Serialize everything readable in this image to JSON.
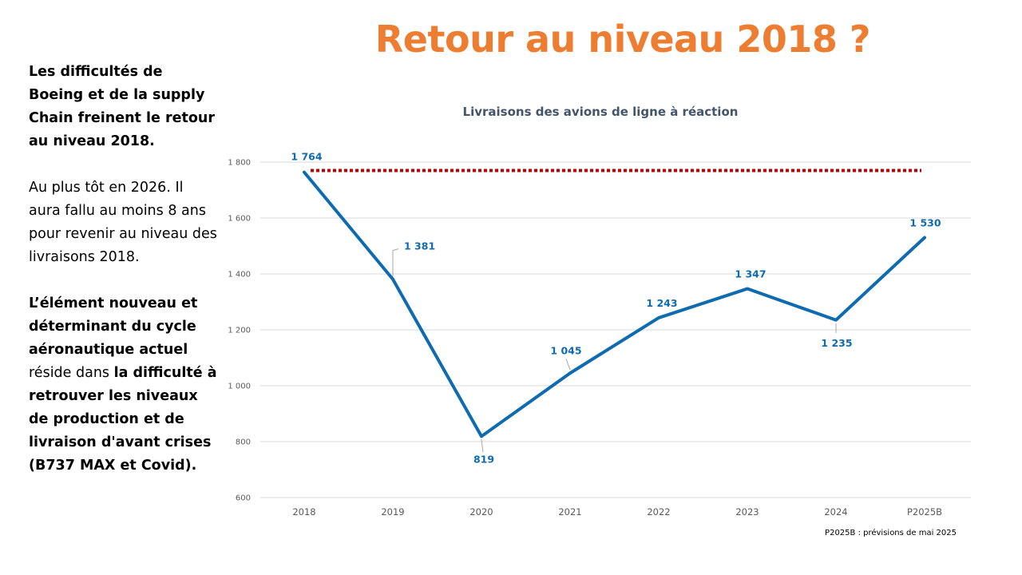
{
  "slide": {
    "title": "Retour au niveau 2018 ?"
  },
  "text": {
    "p1": "Les difficultés de Boeing et de la supply Chain freinent le retour au niveau 2018.",
    "p2": "Au plus tôt en 2026.  Il aura fallu au moins 8 ans pour revenir au niveau des livraisons 2018.",
    "p3_bold1": "L’élément nouveau et déterminant du cycle aéronautique actuel",
    "p3_regular": " réside dans ",
    "p3_bold2": "la difficulté à retrouver les niveaux de production et de livraison d'avant crises (B737 MAX et Covid)."
  },
  "chart_data": {
    "type": "line",
    "title": "Livraisons des avions de ligne à réaction",
    "categories": [
      "2018",
      "2019",
      "2020",
      "2021",
      "2022",
      "2023",
      "2024",
      "P2025B"
    ],
    "series": [
      {
        "values": [
          1764,
          1381,
          819,
          1045,
          1243,
          1347,
          1235,
          1530
        ],
        "labels": [
          "1 764",
          "1 381",
          "819",
          "1 045",
          "1 243",
          "1 347",
          "1 235",
          "1 530"
        ],
        "color": "#0E6BAF"
      }
    ],
    "reference_line": {
      "value": 1770,
      "from": "2018",
      "to": "P2025B",
      "style": "dotted",
      "color": "#C00000"
    },
    "ylim": [
      600,
      1800
    ],
    "yticks": [
      600,
      800,
      1000,
      1200,
      1400,
      1600,
      1800
    ],
    "ytick_labels": [
      "600",
      "800",
      "1 000",
      "1 200",
      "1 400",
      "1 600",
      "1 800"
    ],
    "xlabel": "",
    "ylabel": "",
    "grid": true,
    "legend": "none",
    "note": "P2025B : prévisions de mai 2025"
  }
}
